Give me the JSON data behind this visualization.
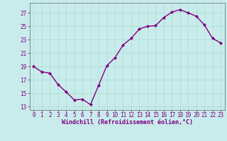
{
  "x": [
    0,
    1,
    2,
    3,
    4,
    5,
    6,
    7,
    8,
    9,
    10,
    11,
    12,
    13,
    14,
    15,
    16,
    17,
    18,
    19,
    20,
    21,
    22,
    23
  ],
  "y": [
    19.0,
    18.2,
    18.0,
    16.3,
    15.2,
    14.0,
    14.1,
    13.3,
    16.2,
    19.1,
    20.3,
    22.2,
    23.2,
    24.6,
    25.0,
    25.1,
    26.3,
    27.1,
    27.5,
    27.0,
    26.5,
    25.2,
    23.2,
    22.5
  ],
  "line_color": "#800080",
  "marker": "D",
  "marker_size": 2.0,
  "line_width": 1.0,
  "bg_color": "#c8ecec",
  "grid_color": "#aaddcc",
  "ylabel_ticks": [
    13,
    15,
    17,
    19,
    21,
    23,
    25,
    27
  ],
  "xlabel": "Windchill (Refroidissement éolien,°C)",
  "xlabel_color": "#800080",
  "tick_color": "#800080",
  "ylim": [
    12.5,
    28.5
  ],
  "xlim": [
    -0.5,
    23.5
  ],
  "tick_fontsize": 5.5,
  "xlabel_fontsize": 6.0
}
